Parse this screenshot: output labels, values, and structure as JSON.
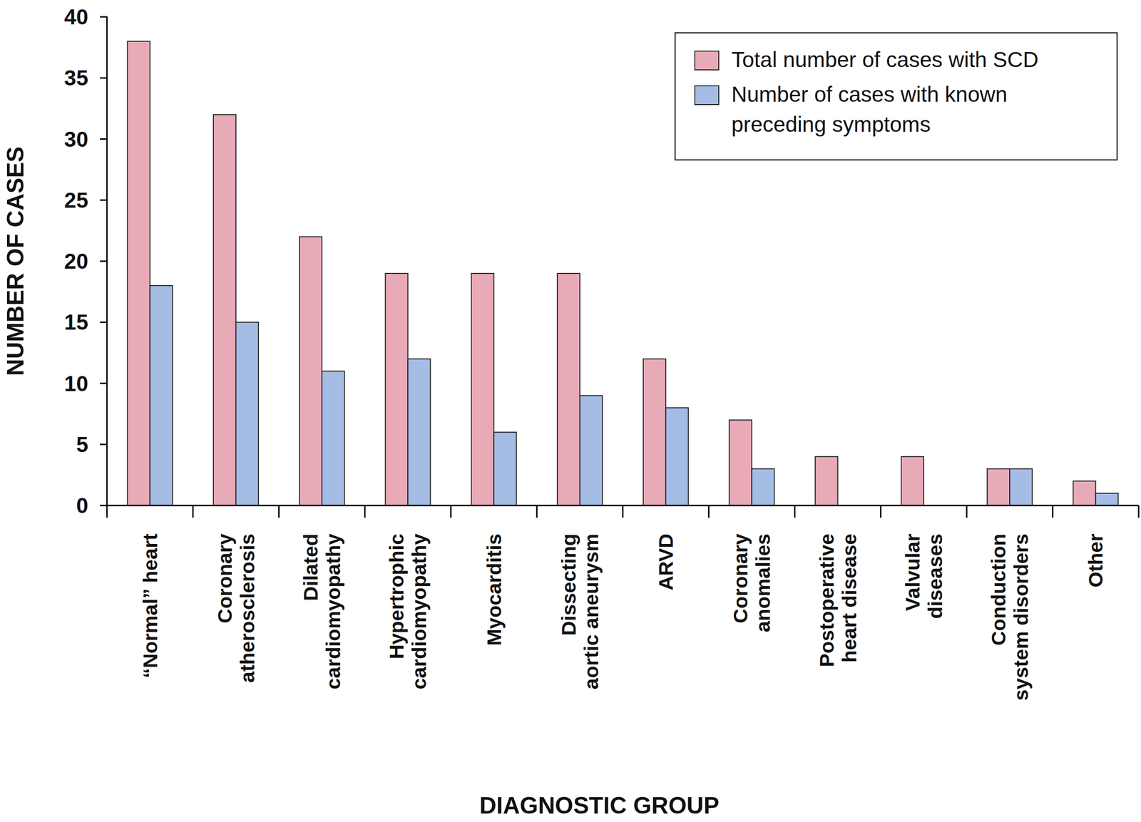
{
  "chart_data": {
    "type": "bar",
    "categories": [
      "“Normal” heart",
      "Coronary\natherosclerosis",
      "Dilated\ncardiomyopathy",
      "Hypertrophic\ncardiomyopathy",
      "Myocarditis",
      "Dissecting\naortic aneurysm",
      "ARVD",
      "Coronary\nanomalies",
      "Postoperative\nheart disease",
      "Valvular\ndiseases",
      "Conduction\nsystem disorders",
      "Other"
    ],
    "series": [
      {
        "name": "Total number of cases with SCD",
        "color": "#e9aab8",
        "values": [
          38,
          32,
          22,
          19,
          19,
          19,
          12,
          7,
          4,
          4,
          3,
          2
        ]
      },
      {
        "name": "Number of cases with known\npreceding symptoms",
        "color": "#a5bde5",
        "values": [
          18,
          15,
          11,
          12,
          6,
          9,
          8,
          3,
          0,
          0,
          3,
          1
        ]
      }
    ],
    "x_label": "DIAGNOSTIC GROUP",
    "y_label": "NUMBER OF CASES",
    "ylim": [
      0,
      40
    ],
    "yticks": [
      0,
      5,
      10,
      15,
      20,
      25,
      30,
      35,
      40
    ],
    "grid": false,
    "legend": "top-right"
  }
}
